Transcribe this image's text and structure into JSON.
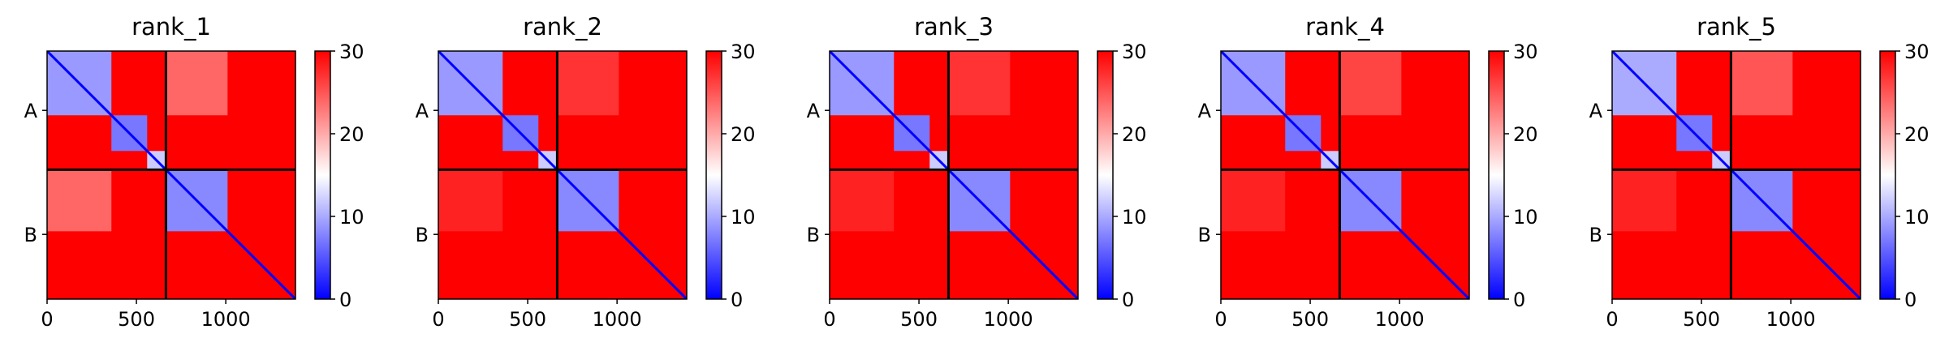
{
  "chart_data": [
    {
      "type": "heatmap",
      "title": "rank_1",
      "xlim": [
        0,
        1390
      ],
      "ylim": [
        0,
        1390
      ],
      "x_ticks": [
        "0",
        "500",
        "1000"
      ],
      "y_tick_labels": [
        "A",
        "B"
      ],
      "chain_boundary": 665,
      "colorbar": {
        "range": [
          0,
          30
        ],
        "ticks": [
          "0",
          "10",
          "20",
          "30"
        ],
        "colormap": "bwr",
        "low_color": "#0000ff",
        "mid_color": "#ffffff",
        "high_color": "#ff0000"
      },
      "blocks": [
        {
          "x": [
            0,
            360
          ],
          "y": [
            0,
            360
          ],
          "value": 9
        },
        {
          "x": [
            360,
            560
          ],
          "y": [
            360,
            560
          ],
          "value": 7
        },
        {
          "x": [
            560,
            665
          ],
          "y": [
            560,
            665
          ],
          "value": 12
        },
        {
          "x": [
            665,
            1010
          ],
          "y": [
            665,
            1010
          ],
          "value": 8
        },
        {
          "x": [
            665,
            1010
          ],
          "y": [
            0,
            360
          ],
          "value": 24
        },
        {
          "x": [
            0,
            360
          ],
          "y": [
            665,
            1010
          ],
          "value": 24
        }
      ]
    },
    {
      "type": "heatmap",
      "title": "rank_2",
      "xlim": [
        0,
        1390
      ],
      "ylim": [
        0,
        1390
      ],
      "x_ticks": [
        "0",
        "500",
        "1000"
      ],
      "y_tick_labels": [
        "A",
        "B"
      ],
      "chain_boundary": 665,
      "colorbar": {
        "range": [
          0,
          30
        ],
        "ticks": [
          "0",
          "10",
          "20",
          "30"
        ],
        "colormap": "bwr",
        "low_color": "#0000ff",
        "mid_color": "#ffffff",
        "high_color": "#ff0000"
      },
      "blocks": [
        {
          "x": [
            0,
            360
          ],
          "y": [
            0,
            360
          ],
          "value": 9
        },
        {
          "x": [
            360,
            560
          ],
          "y": [
            360,
            560
          ],
          "value": 7
        },
        {
          "x": [
            560,
            665
          ],
          "y": [
            560,
            665
          ],
          "value": 12
        },
        {
          "x": [
            665,
            1010
          ],
          "y": [
            665,
            1010
          ],
          "value": 8
        },
        {
          "x": [
            665,
            1010
          ],
          "y": [
            0,
            360
          ],
          "value": 27
        },
        {
          "x": [
            0,
            360
          ],
          "y": [
            665,
            1010
          ],
          "value": 28
        }
      ]
    },
    {
      "type": "heatmap",
      "title": "rank_3",
      "xlim": [
        0,
        1390
      ],
      "ylim": [
        0,
        1390
      ],
      "x_ticks": [
        "0",
        "500",
        "1000"
      ],
      "y_tick_labels": [
        "A",
        "B"
      ],
      "chain_boundary": 665,
      "colorbar": {
        "range": [
          0,
          30
        ],
        "ticks": [
          "0",
          "10",
          "20",
          "30"
        ],
        "colormap": "bwr",
        "low_color": "#0000ff",
        "mid_color": "#ffffff",
        "high_color": "#ff0000"
      },
      "blocks": [
        {
          "x": [
            0,
            360
          ],
          "y": [
            0,
            360
          ],
          "value": 9
        },
        {
          "x": [
            360,
            560
          ],
          "y": [
            360,
            560
          ],
          "value": 7
        },
        {
          "x": [
            560,
            665
          ],
          "y": [
            560,
            665
          ],
          "value": 12
        },
        {
          "x": [
            665,
            1010
          ],
          "y": [
            665,
            1010
          ],
          "value": 8
        },
        {
          "x": [
            665,
            1010
          ],
          "y": [
            0,
            360
          ],
          "value": 27
        },
        {
          "x": [
            0,
            360
          ],
          "y": [
            665,
            1010
          ],
          "value": 28
        }
      ]
    },
    {
      "type": "heatmap",
      "title": "rank_4",
      "xlim": [
        0,
        1390
      ],
      "ylim": [
        0,
        1390
      ],
      "x_ticks": [
        "0",
        "500",
        "1000"
      ],
      "y_tick_labels": [
        "A",
        "B"
      ],
      "chain_boundary": 665,
      "colorbar": {
        "range": [
          0,
          30
        ],
        "ticks": [
          "0",
          "10",
          "20",
          "30"
        ],
        "colormap": "bwr",
        "low_color": "#0000ff",
        "mid_color": "#ffffff",
        "high_color": "#ff0000"
      },
      "blocks": [
        {
          "x": [
            0,
            360
          ],
          "y": [
            0,
            360
          ],
          "value": 9
        },
        {
          "x": [
            360,
            560
          ],
          "y": [
            360,
            560
          ],
          "value": 7
        },
        {
          "x": [
            560,
            665
          ],
          "y": [
            560,
            665
          ],
          "value": 12
        },
        {
          "x": [
            665,
            1010
          ],
          "y": [
            665,
            1010
          ],
          "value": 8
        },
        {
          "x": [
            665,
            1010
          ],
          "y": [
            0,
            360
          ],
          "value": 26
        },
        {
          "x": [
            0,
            360
          ],
          "y": [
            665,
            1010
          ],
          "value": 28
        }
      ]
    },
    {
      "type": "heatmap",
      "title": "rank_5",
      "xlim": [
        0,
        1390
      ],
      "ylim": [
        0,
        1390
      ],
      "x_ticks": [
        "0",
        "500",
        "1000"
      ],
      "y_tick_labels": [
        "A",
        "B"
      ],
      "chain_boundary": 665,
      "colorbar": {
        "range": [
          0,
          30
        ],
        "ticks": [
          "0",
          "10",
          "20",
          "30"
        ],
        "colormap": "bwr",
        "low_color": "#0000ff",
        "mid_color": "#ffffff",
        "high_color": "#ff0000"
      },
      "blocks": [
        {
          "x": [
            0,
            360
          ],
          "y": [
            0,
            360
          ],
          "value": 10
        },
        {
          "x": [
            360,
            560
          ],
          "y": [
            360,
            560
          ],
          "value": 7
        },
        {
          "x": [
            560,
            665
          ],
          "y": [
            560,
            665
          ],
          "value": 12
        },
        {
          "x": [
            665,
            1010
          ],
          "y": [
            665,
            1010
          ],
          "value": 8
        },
        {
          "x": [
            665,
            1010
          ],
          "y": [
            0,
            360
          ],
          "value": 25
        },
        {
          "x": [
            0,
            360
          ],
          "y": [
            665,
            1010
          ],
          "value": 28
        }
      ]
    }
  ]
}
